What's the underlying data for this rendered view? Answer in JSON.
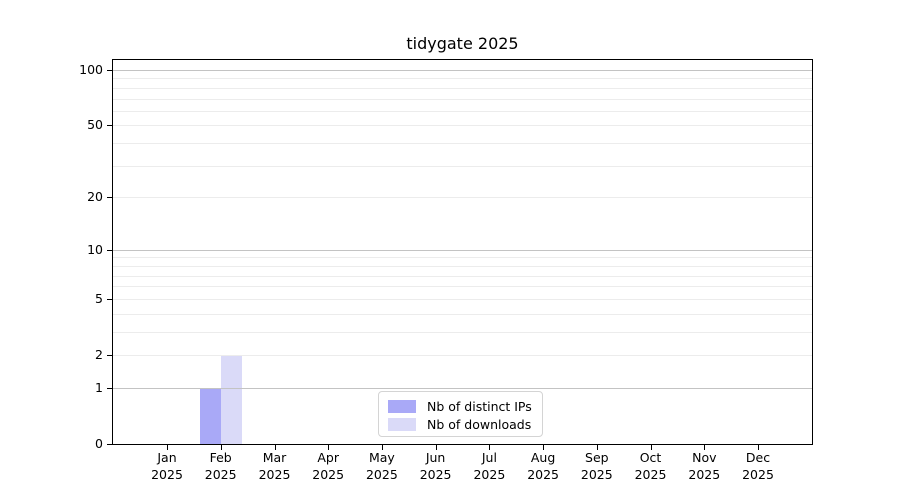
{
  "chart_data": {
    "type": "bar",
    "title": "tidygate 2025",
    "x_categories": [
      {
        "month": "Jan",
        "year": "2025"
      },
      {
        "month": "Feb",
        "year": "2025"
      },
      {
        "month": "Mar",
        "year": "2025"
      },
      {
        "month": "Apr",
        "year": "2025"
      },
      {
        "month": "May",
        "year": "2025"
      },
      {
        "month": "Jun",
        "year": "2025"
      },
      {
        "month": "Jul",
        "year": "2025"
      },
      {
        "month": "Aug",
        "year": "2025"
      },
      {
        "month": "Sep",
        "year": "2025"
      },
      {
        "month": "Oct",
        "year": "2025"
      },
      {
        "month": "Nov",
        "year": "2025"
      },
      {
        "month": "Dec",
        "year": "2025"
      }
    ],
    "series": [
      {
        "name": "Nb of distinct IPs",
        "color": "#a9a9f7",
        "values": [
          0,
          1,
          0,
          0,
          0,
          0,
          0,
          0,
          0,
          0,
          0,
          0
        ]
      },
      {
        "name": "Nb of downloads",
        "color": "#dadaf8",
        "values": [
          0,
          2,
          0,
          0,
          0,
          0,
          0,
          0,
          0,
          0,
          0,
          0
        ]
      }
    ],
    "y_axis": {
      "scale": "log10(value+1)",
      "ticks": [
        0,
        1,
        2,
        5,
        10,
        20,
        50,
        100
      ],
      "major_gridlines": [
        1,
        10,
        100
      ],
      "minor_gridlines": [
        2,
        3,
        4,
        5,
        6,
        7,
        8,
        9,
        20,
        30,
        40,
        50,
        60,
        70,
        80,
        90
      ],
      "top_value": 113
    },
    "legend_position": "bottom-center",
    "colors": {
      "axis": "#000000",
      "grid_major": "#c3c3c3",
      "grid_minor": "#ececec",
      "background": "#ffffff",
      "legend_border": "#d4d4d4"
    },
    "grid": "horizontal-only"
  }
}
